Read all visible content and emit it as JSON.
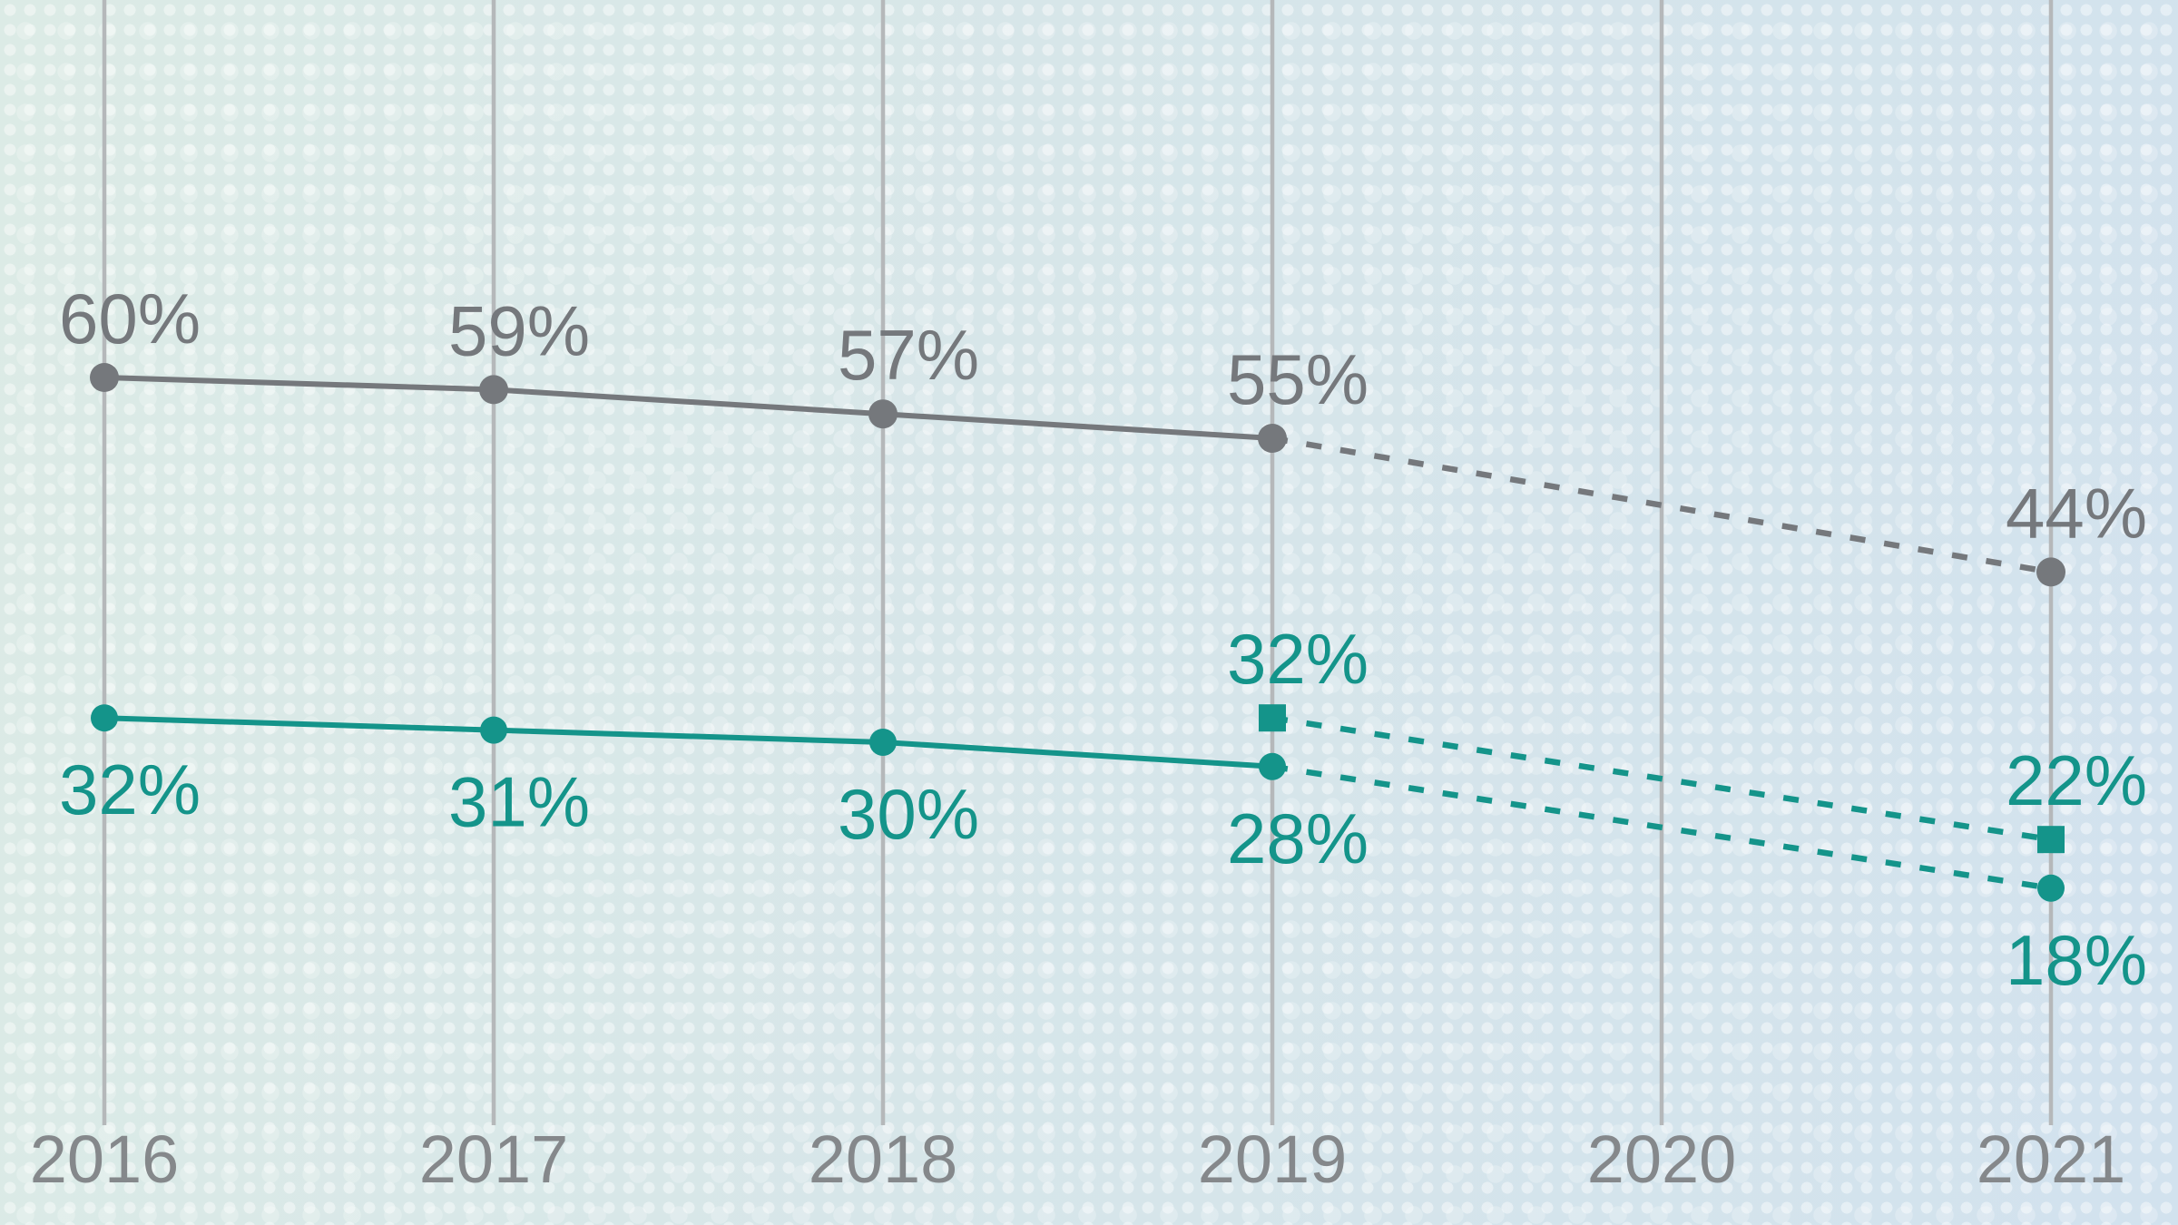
{
  "chart_data": {
    "type": "line",
    "title": "",
    "subtitle": "",
    "xlabel": "",
    "ylabel": "",
    "categories": [
      "2016",
      "2017",
      "2018",
      "2019",
      "2020",
      "2021"
    ],
    "x_values": [
      2016,
      2017,
      2018,
      2019,
      2020,
      2021
    ],
    "ylim": [
      0,
      100
    ],
    "grid": "vertical-gridlines-only",
    "legend": "none",
    "style": {
      "background_gradient_left": "#dcebe6",
      "background_gradient_right": "#d2e2ee",
      "halftone_dot_color": "#e7f2f4",
      "gridline_color": "#b5b8ba",
      "axis_label_color": "#85888b",
      "gray_series_color": "#75787c",
      "teal_series_color": "#14948a"
    },
    "series": [
      {
        "name": "gray-circle-series",
        "color": "#75787c",
        "marker": "circle",
        "line_style": "solid-then-dashed",
        "dashed_from_x": 2019,
        "label_position": "above",
        "points": [
          {
            "x": 2016,
            "value": 60,
            "label": "60%"
          },
          {
            "x": 2017,
            "value": 59,
            "label": "59%"
          },
          {
            "x": 2018,
            "value": 57,
            "label": "57%"
          },
          {
            "x": 2019,
            "value": 55,
            "label": "55%"
          },
          {
            "x": 2021,
            "value": 44,
            "label": "44%"
          }
        ]
      },
      {
        "name": "teal-circle-series",
        "color": "#14948a",
        "marker": "circle",
        "line_style": "solid-then-dashed",
        "dashed_from_x": 2019,
        "label_position": "below",
        "points": [
          {
            "x": 2016,
            "value": 32,
            "label": "32%"
          },
          {
            "x": 2017,
            "value": 31,
            "label": "31%"
          },
          {
            "x": 2018,
            "value": 30,
            "label": "30%"
          },
          {
            "x": 2019,
            "value": 28,
            "label": "28%"
          },
          {
            "x": 2021,
            "value": 18,
            "label": "18%"
          }
        ]
      },
      {
        "name": "teal-square-series",
        "color": "#14948a",
        "marker": "square",
        "line_style": "dashed",
        "dashed_from_x": 2019,
        "label_position": "above",
        "points": [
          {
            "x": 2019,
            "value": 32,
            "label": "32%"
          },
          {
            "x": 2021,
            "value": 22,
            "label": "22%"
          }
        ]
      }
    ]
  }
}
